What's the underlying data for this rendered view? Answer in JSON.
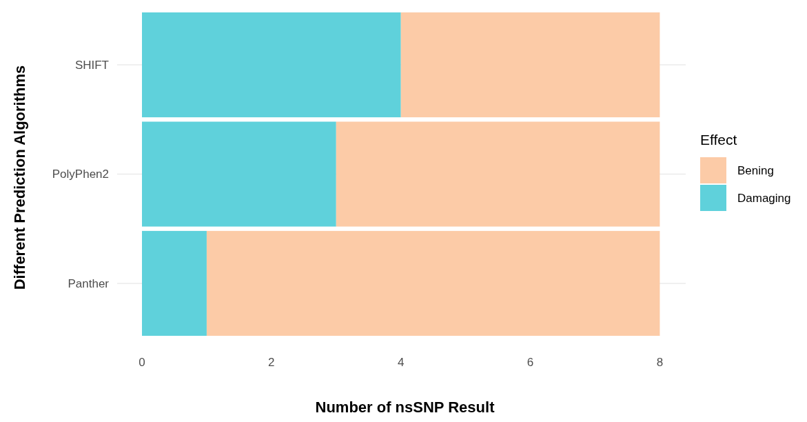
{
  "chart_data": {
    "type": "bar",
    "orientation": "horizontal",
    "stacked": true,
    "xlabel": "Number of nsSNP Result",
    "ylabel": "Different Prediction Algorithms",
    "legend_title": "Effect",
    "categories": [
      "SHIFT",
      "PolyPhen2",
      "Panther"
    ],
    "series": [
      {
        "name": "Damaging",
        "color": "#5fd1db",
        "values": [
          4,
          3,
          1
        ]
      },
      {
        "name": "Bening",
        "color": "#fccba7",
        "values": [
          4,
          5,
          7
        ]
      }
    ],
    "xlim": [
      0,
      8.4
    ],
    "xticks": [
      0,
      2,
      4,
      6,
      8
    ],
    "grid": "y",
    "legend": "right"
  }
}
